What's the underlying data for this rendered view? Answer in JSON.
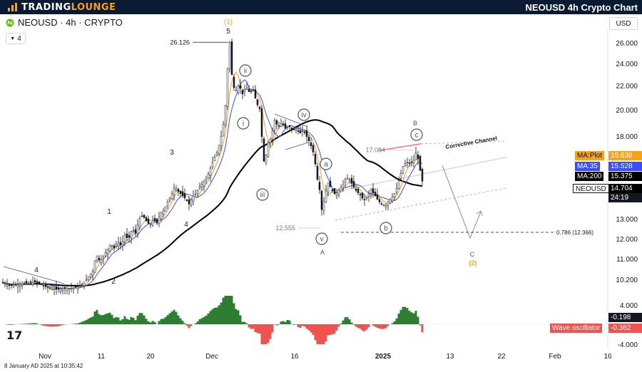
{
  "header": {
    "brand_a": "TRADING",
    "brand_b": "LOUNGE",
    "title": "NEOUSD 4h Crypto Chart"
  },
  "symbol": {
    "label": "NEOUSD · 4h · CRYPTO",
    "indicator_badge": "4"
  },
  "currency": "USD",
  "footer": {
    "timestamp": "8 January AD 2025 at 10:35:42"
  },
  "colors": {
    "ma_plot": "#f5a31a",
    "ma_35": "#3b4bff",
    "ma_200": "#000000",
    "bull": "#2e7d32",
    "bear": "#ef5350",
    "channel": "#ff6b6b",
    "header_bg": "#0a1a33"
  },
  "chart_data": {
    "type": "candlestick",
    "symbol": "NEOUSD",
    "interval": "4h",
    "y_axis": {
      "ticks": [
        "26.000",
        "24.000",
        "22.000",
        "20.000",
        "18.000",
        "13.000",
        "12.000",
        "11.000",
        "10.200"
      ],
      "scale": "log"
    },
    "x_axis": {
      "ticks": [
        "Nov",
        "11",
        "20",
        "Dec",
        "16",
        "2025",
        "13",
        "22",
        "Feb",
        "16"
      ]
    },
    "price_tags": [
      {
        "label": "MA:Plot",
        "value": "15.638",
        "color": "#f5a31a"
      },
      {
        "label": "MA:35",
        "value": "15.528",
        "color": "#3b4bff"
      },
      {
        "label": "MA:200",
        "value": "15.375",
        "color": "#000000"
      },
      {
        "label": "NEOUSD",
        "value": "14.704",
        "color": "#000000"
      }
    ],
    "countdown": "24:19",
    "price_annotations": [
      {
        "label": "26.126",
        "price": 26.126
      },
      {
        "label": "17.084",
        "price": 17.084
      },
      {
        "label": "12.555",
        "price": 12.555
      },
      {
        "label": "0.786 (12.366)",
        "price": 12.366
      }
    ],
    "wave_labels": {
      "impulse_lower": [
        "1",
        "2",
        "3",
        "4",
        "5"
      ],
      "early_4": "4",
      "degree_1": "(1)",
      "minor": [
        "i",
        "ii",
        "iii",
        "iv",
        "v"
      ],
      "abc_minor": [
        "a",
        "b",
        "c"
      ],
      "abc_major": [
        "A",
        "B",
        "C"
      ],
      "degree_2": "(2)"
    },
    "channel_label": "Corrective Channel",
    "oscillator": {
      "name": "Wave oscillator",
      "ticks": [
        "4.000",
        "-4.000"
      ],
      "tags": [
        {
          "value": "-0.198",
          "color": "#131722"
        },
        {
          "value": "-0.362",
          "color": "#ef5350"
        }
      ]
    },
    "price_path": [
      [
        0,
        10.15
      ],
      [
        15,
        10.0
      ],
      [
        25,
        10.05
      ],
      [
        40,
        10.1
      ],
      [
        50,
        10.15
      ],
      [
        60,
        10.0
      ],
      [
        70,
        9.9
      ],
      [
        80,
        9.85
      ],
      [
        90,
        9.9
      ],
      [
        100,
        9.9
      ],
      [
        110,
        9.95
      ],
      [
        120,
        10.2
      ],
      [
        130,
        10.6
      ],
      [
        135,
        11.3
      ],
      [
        140,
        11.0
      ],
      [
        145,
        11.2
      ],
      [
        150,
        11.5
      ],
      [
        155,
        11.8
      ],
      [
        160,
        11.6
      ],
      [
        165,
        11.9
      ],
      [
        170,
        11.7
      ],
      [
        175,
        12.2
      ],
      [
        180,
        12.0
      ],
      [
        185,
        12.5
      ],
      [
        190,
        12.3
      ],
      [
        195,
        13.0
      ],
      [
        200,
        13.2
      ],
      [
        205,
        12.9
      ],
      [
        210,
        12.7
      ],
      [
        215,
        13.0
      ],
      [
        220,
        12.8
      ],
      [
        225,
        13.3
      ],
      [
        230,
        13.5
      ],
      [
        235,
        13.9
      ],
      [
        240,
        14.3
      ],
      [
        245,
        14.8
      ],
      [
        250,
        14.5
      ],
      [
        255,
        14.3
      ],
      [
        260,
        14.1
      ],
      [
        265,
        13.8
      ],
      [
        270,
        14.2
      ],
      [
        275,
        14.4
      ],
      [
        280,
        14.8
      ],
      [
        285,
        15.0
      ],
      [
        290,
        15.3
      ],
      [
        295,
        15.9
      ],
      [
        300,
        16.5
      ],
      [
        305,
        17.0
      ],
      [
        310,
        18.0
      ],
      [
        315,
        19.5
      ],
      [
        318,
        22.0
      ],
      [
        320,
        25.0
      ],
      [
        322,
        26.1
      ],
      [
        324,
        23.5
      ],
      [
        327,
        22.0
      ],
      [
        330,
        21.5
      ],
      [
        335,
        22.1
      ],
      [
        340,
        21.3
      ],
      [
        345,
        21.9
      ],
      [
        350,
        21.4
      ],
      [
        355,
        21.6
      ],
      [
        360,
        20.5
      ],
      [
        365,
        20.0
      ],
      [
        368,
        17.0
      ],
      [
        371,
        16.0
      ],
      [
        375,
        17.5
      ],
      [
        380,
        17.9
      ],
      [
        385,
        19.2
      ],
      [
        390,
        18.7
      ],
      [
        395,
        19.0
      ],
      [
        400,
        18.6
      ],
      [
        405,
        18.8
      ],
      [
        410,
        18.4
      ],
      [
        415,
        18.6
      ],
      [
        420,
        18.2
      ],
      [
        425,
        18.5
      ],
      [
        430,
        18.0
      ],
      [
        435,
        17.5
      ],
      [
        440,
        16.8
      ],
      [
        445,
        15.2
      ],
      [
        448,
        14.6
      ],
      [
        450,
        13.8
      ],
      [
        452,
        13.2
      ],
      [
        455,
        14.3
      ],
      [
        460,
        15.0
      ],
      [
        465,
        14.6
      ],
      [
        470,
        14.3
      ],
      [
        475,
        14.6
      ],
      [
        480,
        14.8
      ],
      [
        485,
        15.3
      ],
      [
        490,
        15.2
      ],
      [
        495,
        14.8
      ],
      [
        500,
        14.5
      ],
      [
        505,
        14.3
      ],
      [
        510,
        14.0
      ],
      [
        515,
        14.2
      ],
      [
        520,
        14.6
      ],
      [
        525,
        14.3
      ],
      [
        530,
        14.0
      ],
      [
        535,
        13.8
      ],
      [
        540,
        13.7
      ],
      [
        545,
        14.0
      ],
      [
        550,
        14.2
      ],
      [
        555,
        14.5
      ],
      [
        560,
        15.3
      ],
      [
        565,
        16.0
      ],
      [
        570,
        16.3
      ],
      [
        575,
        16.2
      ],
      [
        580,
        16.4
      ],
      [
        583,
        16.9
      ],
      [
        586,
        16.5
      ],
      [
        590,
        15.5
      ],
      [
        594,
        14.7
      ]
    ]
  }
}
